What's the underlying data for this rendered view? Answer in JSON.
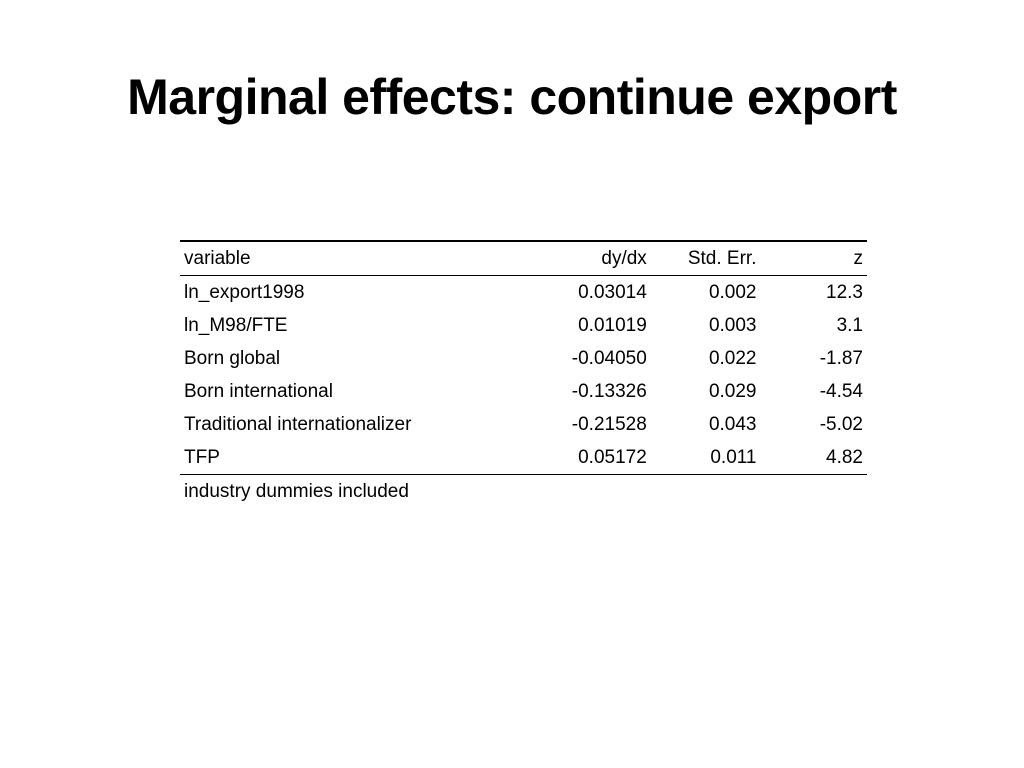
{
  "slide": {
    "title": "Marginal effects: continue export"
  },
  "table": {
    "headers": {
      "variable": "variable",
      "dydx": "dy/dx",
      "stderr": "Std. Err.",
      "z": "z"
    },
    "rows": [
      {
        "variable": "ln_export1998",
        "dydx": "0.03014",
        "stderr": "0.002",
        "z": "12.3"
      },
      {
        "variable": "ln_M98/FTE",
        "dydx": "0.01019",
        "stderr": "0.003",
        "z": "3.1"
      },
      {
        "variable": "Born global",
        "dydx": "-0.04050",
        "stderr": "0.022",
        "z": "-1.87"
      },
      {
        "variable": "Born international",
        "dydx": "-0.13326",
        "stderr": "0.029",
        "z": "-4.54"
      },
      {
        "variable": "Traditional internationalizer",
        "dydx": "-0.21528",
        "stderr": "0.043",
        "z": "-5.02"
      },
      {
        "variable": "TFP",
        "dydx": "0.05172",
        "stderr": "0.011",
        "z": "4.82"
      }
    ],
    "note": "industry dummies included"
  }
}
